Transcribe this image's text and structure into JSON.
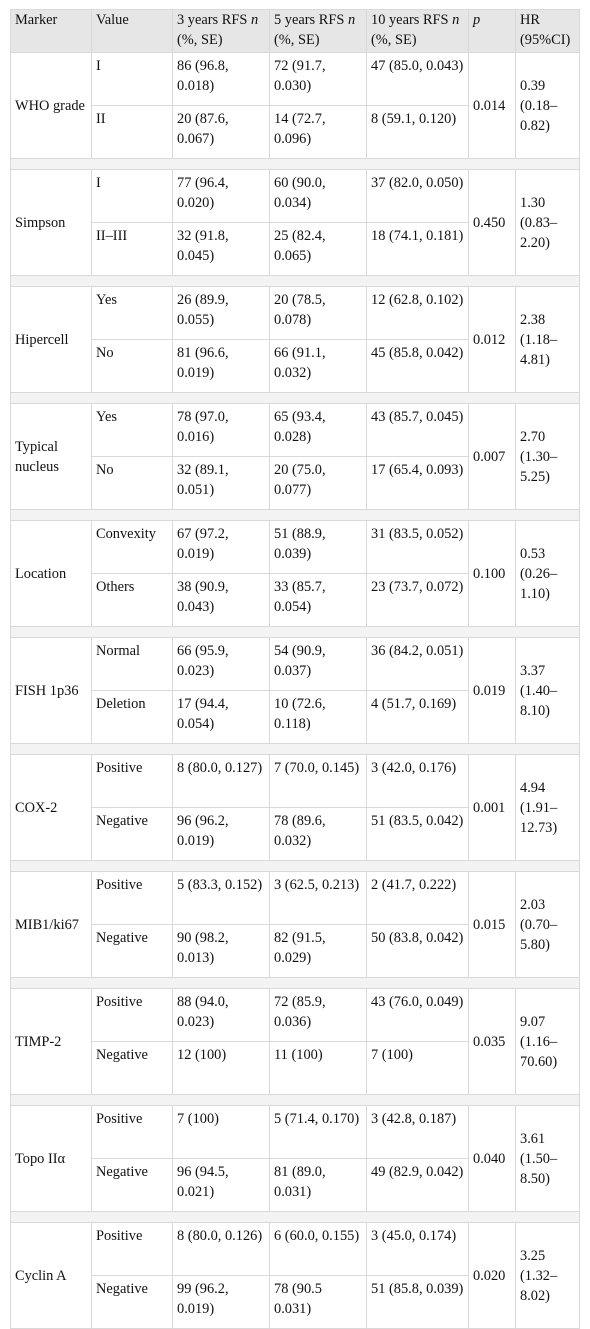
{
  "header": {
    "marker": "Marker",
    "value": "Value",
    "y3": "3 years RFS n (%, SE)",
    "y5": "5 years RFS n (%, SE)",
    "y10": "10 years RFS n (%, SE)",
    "p": "p",
    "hr": "HR (95%CI)"
  },
  "groups": [
    {
      "marker": "WHO grade",
      "p": "0.014",
      "hr": "0.39 (0.18–0.82)",
      "rows": [
        {
          "value": "I",
          "y3": "86 (96.8, 0.018)",
          "y5": "72 (91.7, 0.030)",
          "y10": "47 (85.0, 0.043)"
        },
        {
          "value": "II",
          "y3": "20 (87.6, 0.067)",
          "y5": "14 (72.7, 0.096)",
          "y10": "8 (59.1, 0.120)"
        }
      ]
    },
    {
      "marker": "Simpson",
      "p": "0.450",
      "hr": "1.30 (0.83–2.20)",
      "rows": [
        {
          "value": "I",
          "y3": "77 (96.4, 0.020)",
          "y5": "60 (90.0, 0.034)",
          "y10": "37 (82.0, 0.050)"
        },
        {
          "value": "II–III",
          "y3": "32 (91.8, 0.045)",
          "y5": "25 (82.4, 0.065)",
          "y10": "18 (74.1, 0.181)"
        }
      ]
    },
    {
      "marker": "Hipercell",
      "p": "0.012",
      "hr": "2.38 (1.18–4.81)",
      "rows": [
        {
          "value": "Yes",
          "y3": "26 (89.9, 0.055)",
          "y5": "20 (78.5, 0.078)",
          "y10": "12 (62.8, 0.102)"
        },
        {
          "value": "No",
          "y3": "81 (96.6, 0.019)",
          "y5": "66 (91.1, 0.032)",
          "y10": "45 (85.8, 0.042)"
        }
      ]
    },
    {
      "marker": "Typical nucleus",
      "p": "0.007",
      "hr": "2.70 (1.30–5.25)",
      "rows": [
        {
          "value": "Yes",
          "y3": "78 (97.0, 0.016)",
          "y5": "65 (93.4, 0.028)",
          "y10": "43 (85.7, 0.045)"
        },
        {
          "value": "No",
          "y3": "32 (89.1, 0.051)",
          "y5": "20 (75.0, 0.077)",
          "y10": "17 (65.4, 0.093)"
        }
      ]
    },
    {
      "marker": "Location",
      "p": "0.100",
      "hr": "0.53 (0.26–1.10)",
      "rows": [
        {
          "value": "Convexity",
          "y3": "67 (97.2, 0.019)",
          "y5": "51 (88.9, 0.039)",
          "y10": "31 (83.5, 0.052)"
        },
        {
          "value": "Others",
          "y3": "38 (90.9, 0.043)",
          "y5": "33 (85.7, 0.054)",
          "y10": "23 (73.7, 0.072)"
        }
      ]
    },
    {
      "marker": "FISH 1p36",
      "p": "0.019",
      "hr": "3.37 (1.40–8.10)",
      "rows": [
        {
          "value": "Normal",
          "y3": "66 (95.9, 0.023)",
          "y5": "54 (90.9, 0.037)",
          "y10": "36 (84.2, 0.051)"
        },
        {
          "value": "Deletion",
          "y3": "17 (94.4, 0.054)",
          "y5": "10 (72.6, 0.118)",
          "y10": "4 (51.7, 0.169)"
        }
      ]
    },
    {
      "marker": "COX-2",
      "p": "0.001",
      "hr": "4.94 (1.91–12.73)",
      "rows": [
        {
          "value": "Positive",
          "y3": "8 (80.0, 0.127)",
          "y5": "7 (70.0, 0.145)",
          "y10": "3 (42.0, 0.176)"
        },
        {
          "value": "Negative",
          "y3": "96 (96.2, 0.019)",
          "y5": "78 (89.6, 0.032)",
          "y10": "51 (83.5, 0.042)"
        }
      ]
    },
    {
      "marker": "MIB1/ki67",
      "p": "0.015",
      "hr": "2.03 (0.70–5.80)",
      "rows": [
        {
          "value": "Positive",
          "y3": "5 (83.3, 0.152)",
          "y5": "3 (62.5, 0.213)",
          "y10": "2 (41.7, 0.222)"
        },
        {
          "value": "Negative",
          "y3": "90 (98.2, 0.013)",
          "y5": "82 (91.5, 0.029)",
          "y10": "50 (83.8, 0.042)"
        }
      ]
    },
    {
      "marker": "TIMP-2",
      "p": "0.035",
      "hr": "9.07 (1.16–70.60)",
      "rows": [
        {
          "value": "Positive",
          "y3": "88 (94.0, 0.023)",
          "y5": "72 (85.9, 0.036)",
          "y10": "43 (76.0, 0.049)"
        },
        {
          "value": "Negative",
          "y3": "12 (100)",
          "y5": "11 (100)",
          "y10": "7 (100)"
        }
      ]
    },
    {
      "marker": "Topo IIα",
      "p": "0.040",
      "hr": "3.61 (1.50–8.50)",
      "rows": [
        {
          "value": "Positive",
          "y3": "7 (100)",
          "y5": "5 (71.4, 0.170)",
          "y10": "3 (42.8, 0.187)"
        },
        {
          "value": "Negative",
          "y3": "96 (94.5, 0.021)",
          "y5": "81 (89.0, 0.031)",
          "y10": "49 (82.9, 0.042)"
        }
      ]
    },
    {
      "marker": "Cyclin A",
      "p": "0.020",
      "hr": "3.25 (1.32–8.02)",
      "rows": [
        {
          "value": "Positive",
          "y3": "8 (80.0, 0.126)",
          "y5": "6 (60.0, 0.155)",
          "y10": "3 (45.0, 0.174)"
        },
        {
          "value": "Negative",
          "y3": "99 (96.2, 0.019)",
          "y5": "78 (90.5 0.031)",
          "y10": "51 (85.8, 0.039)"
        }
      ]
    }
  ]
}
